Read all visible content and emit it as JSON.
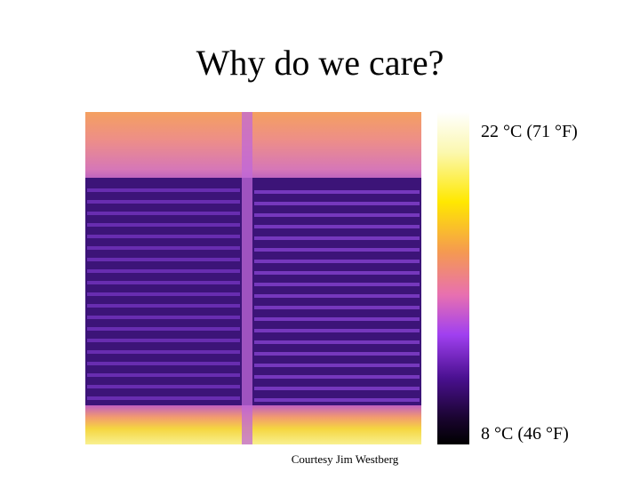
{
  "title": "Why do we care?",
  "scale": {
    "max_label": "22 °C (71 °F)",
    "min_label": "8 °C (46 °F)"
  },
  "credit": "Courtesy Jim Westberg"
}
